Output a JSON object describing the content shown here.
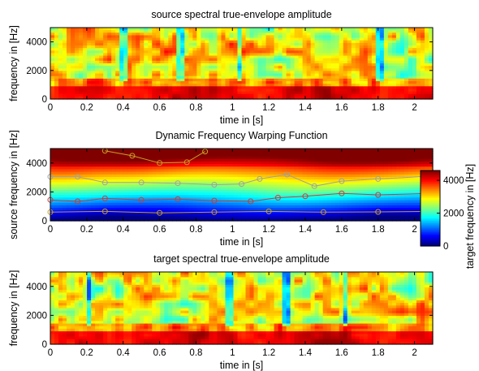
{
  "chart_data": [
    {
      "type": "heatmap",
      "title": "source spectral true-envelope amplitude",
      "xlabel": "time in [s]",
      "ylabel": "frequency in [Hz]",
      "xlim": [
        0,
        2.1
      ],
      "ylim": [
        0,
        5000
      ],
      "xticks": [
        0,
        0.2,
        0.4,
        0.6,
        0.8,
        1,
        1.2,
        1.4,
        1.6,
        1.8,
        2
      ],
      "xtick_labels": [
        "0",
        "0.2",
        "0.4",
        "0.6",
        "0.8",
        "1",
        "1.2",
        "1.4",
        "1.6",
        "1.8",
        "2"
      ],
      "yticks": [
        0,
        2000,
        4000
      ],
      "ytick_labels": [
        "0",
        "2000",
        "4000"
      ],
      "colormap": "jet",
      "low_band_energy": [
        0.55,
        0.62,
        0.7,
        0.6,
        0.5,
        0.68,
        0.72,
        0.85,
        0.9,
        0.75,
        0.6,
        0.55,
        0.7,
        0.8,
        0.92,
        0.9,
        0.7,
        0.6,
        0.58,
        0.62,
        0.7
      ],
      "grid": false
    },
    {
      "type": "heatmap",
      "title": "Dynamic Frequency Warping Function",
      "xlabel": "time in [s]",
      "ylabel": "source frequency in [Hz]",
      "xlim": [
        0,
        2.1
      ],
      "ylim": [
        0,
        5000
      ],
      "xticks": [
        0,
        0.2,
        0.4,
        0.6,
        0.8,
        1,
        1.2,
        1.4,
        1.6,
        1.8,
        2
      ],
      "xtick_labels": [
        "0",
        "0.2",
        "0.4",
        "0.6",
        "0.8",
        "1",
        "1.2",
        "1.4",
        "1.6",
        "1.8",
        "2"
      ],
      "yticks": [
        0,
        2000,
        4000
      ],
      "ytick_labels": [
        "0",
        "2000",
        "4000"
      ],
      "colormap": "jet",
      "colorbar": {
        "label": "target frequency in [Hz]",
        "ticks": [
          0,
          2000,
          4000
        ],
        "tick_labels": [
          "0",
          "2000",
          "4000"
        ],
        "range": [
          0,
          4600
        ]
      },
      "contours": [
        {
          "color": "#c8a028",
          "points": [
            [
              0,
              600
            ],
            [
              0.3,
              650
            ],
            [
              0.6,
              550
            ],
            [
              0.9,
              600
            ],
            [
              1.2,
              650
            ],
            [
              1.5,
              600
            ],
            [
              1.8,
              620
            ],
            [
              2.1,
              650
            ]
          ]
        },
        {
          "color": "#c83c3c",
          "points": [
            [
              0,
              1450
            ],
            [
              0.15,
              1350
            ],
            [
              0.3,
              1550
            ],
            [
              0.5,
              1450
            ],
            [
              0.7,
              1500
            ],
            [
              0.9,
              1400
            ],
            [
              1.1,
              1350
            ],
            [
              1.25,
              1600
            ],
            [
              1.4,
              1700
            ],
            [
              1.6,
              1900
            ],
            [
              1.8,
              1800
            ],
            [
              2.1,
              1900
            ]
          ]
        },
        {
          "color": "#a0a0a0",
          "points": [
            [
              0,
              3050
            ],
            [
              0.15,
              3050
            ],
            [
              0.3,
              2650
            ],
            [
              0.5,
              2650
            ],
            [
              0.7,
              2600
            ],
            [
              0.9,
              2500
            ],
            [
              1.05,
              2550
            ],
            [
              1.15,
              2900
            ],
            [
              1.3,
              3200
            ],
            [
              1.45,
              2400
            ],
            [
              1.6,
              2750
            ],
            [
              1.8,
              2900
            ],
            [
              2.1,
              3100
            ]
          ]
        },
        {
          "color": "#c8a028",
          "points": [
            [
              0.3,
              4850
            ],
            [
              0.45,
              4500
            ],
            [
              0.6,
              4000
            ],
            [
              0.75,
              4050
            ],
            [
              0.85,
              4800
            ]
          ]
        }
      ],
      "grid": false
    },
    {
      "type": "heatmap",
      "title": "target spectral true-envelope amplitude",
      "xlabel": "time in [s]",
      "ylabel": "frequency in [Hz]",
      "xlim": [
        0,
        2.1
      ],
      "ylim": [
        0,
        5000
      ],
      "xticks": [
        0,
        0.2,
        0.4,
        0.6,
        0.8,
        1,
        1.2,
        1.4,
        1.6,
        1.8,
        2
      ],
      "xtick_labels": [
        "0",
        "0.2",
        "0.4",
        "0.6",
        "0.8",
        "1",
        "1.2",
        "1.4",
        "1.6",
        "1.8",
        "2"
      ],
      "yticks": [
        0,
        2000,
        4000
      ],
      "ytick_labels": [
        "0",
        "2000",
        "4000"
      ],
      "colormap": "jet",
      "low_band_energy": [
        0.6,
        0.65,
        0.72,
        0.62,
        0.52,
        0.7,
        0.75,
        0.88,
        0.9,
        0.78,
        0.62,
        0.56,
        0.72,
        0.82,
        0.93,
        0.9,
        0.72,
        0.62,
        0.6,
        0.64,
        0.72
      ],
      "grid": false
    }
  ]
}
